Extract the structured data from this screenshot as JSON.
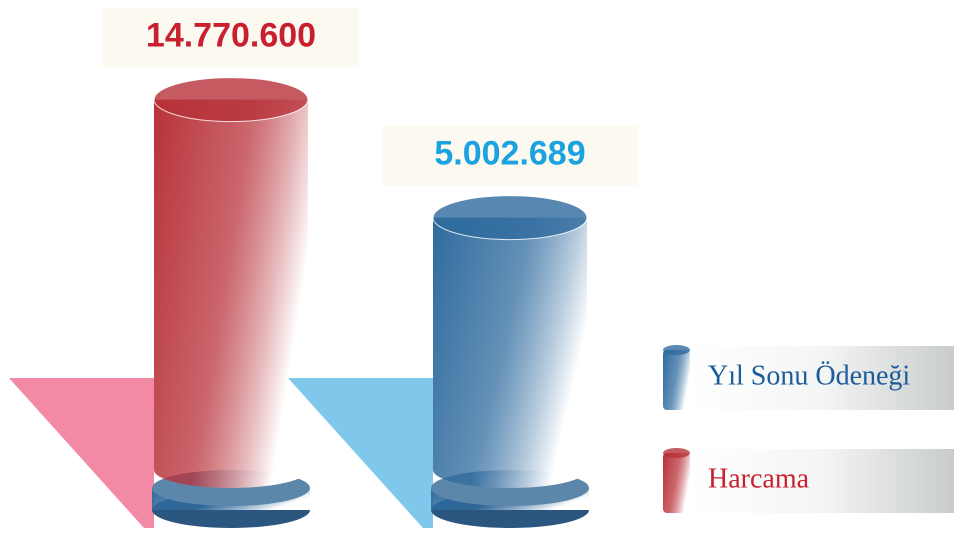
{
  "chart_data": {
    "type": "cylinder",
    "series": [
      {
        "name": "Harcama",
        "color": "#b8323a",
        "label_color": "#c8202e",
        "shadow_color": "#f28aa6",
        "values": [
          14770600
        ],
        "value_labels": [
          "14.770.600"
        ]
      },
      {
        "name": "Yıl Sonu Ödeneği",
        "color": "#2f6b9e",
        "label_color": "#1aa3e0",
        "shadow_color": "#7fc8ec",
        "values": [
          5002689
        ],
        "value_labels": [
          "5.002.689"
        ]
      }
    ]
  }
}
